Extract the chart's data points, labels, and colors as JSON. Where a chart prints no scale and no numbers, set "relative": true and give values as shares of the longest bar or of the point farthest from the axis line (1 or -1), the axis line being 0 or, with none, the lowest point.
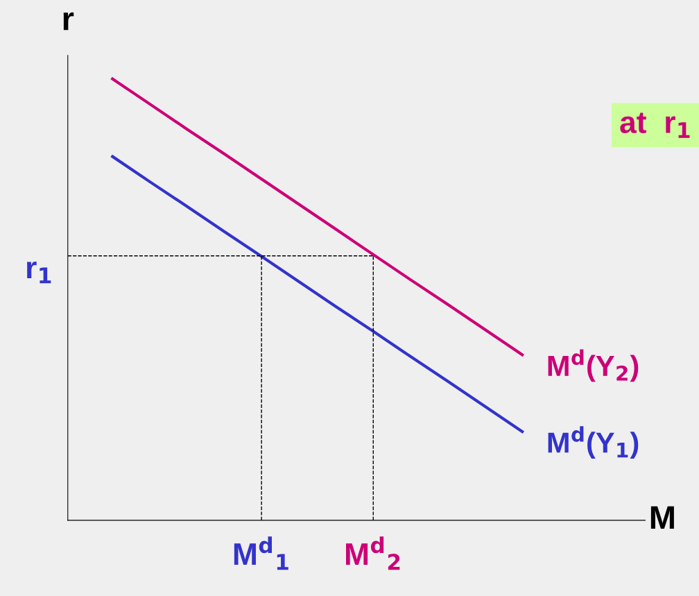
{
  "chart_data": {
    "type": "line",
    "relative": true,
    "xlabel": "M",
    "ylabel": "r",
    "categories": [
      null,
      null,
      null,
      null,
      "M$^{d}$$_{1}$",
      null,
      null,
      "M$^{d}$$_{2}$",
      null,
      null,
      null,
      null
    ],
    "series": [
      {
        "name": "M$^{d}$(Y$_{2}$)",
        "color": "#cc0077",
        "values": [
          1,
          0.943,
          0.886,
          0.83,
          0.773,
          0.716,
          0.659,
          0.602,
          0.545,
          0.489,
          0.432,
          0.375
        ]
      },
      {
        "name": "M$^{d}$(Y$_{1}$)",
        "color": "#3333cc",
        "values": [
          0.824,
          0.767,
          0.711,
          0.654,
          0.598,
          0.541,
          0.484,
          0.428,
          0.371,
          0.315,
          0.258,
          0.201
        ]
      }
    ],
    "ref_lines": [
      {
        "axis": "y",
        "value": 0.599,
        "label": "r$_{1}$",
        "color": "#000000",
        "line_style": "dashed"
      }
    ],
    "annotations": [
      "at  r$_{1}$"
    ],
    "legend": false,
    "marker": "none",
    "line_style": "solid"
  }
}
